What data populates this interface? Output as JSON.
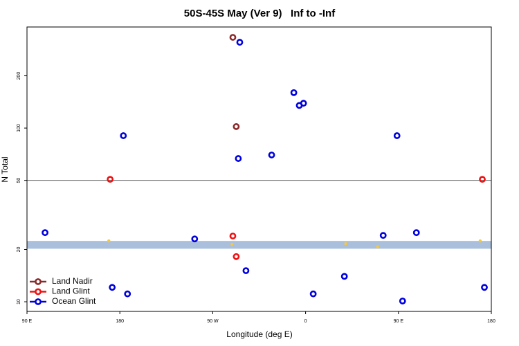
{
  "chart_data": {
    "type": "scatter",
    "title": "50S-45S May (Ver 9)   Inf to -Inf",
    "x_label": "Longitude (deg E)",
    "y_label": "N Total",
    "xlim": [
      90,
      540
    ],
    "xticks": [
      {
        "value": 90,
        "label": "90 E"
      },
      180,
      {
        "value": 270,
        "label": "90 W"
      },
      {
        "value": 360,
        "label": "0"
      },
      {
        "value": 450,
        "label": "90 E"
      },
      {
        "value": 540,
        "label": "180"
      }
    ],
    "ylim": [
      8.8,
      382
    ],
    "y_log": true,
    "yticks": [
      10,
      20,
      50,
      100,
      200
    ],
    "hline": 50,
    "hline_color": "#666666",
    "band": [
      20.2,
      22.4
    ],
    "band_color": "#a9bfdc",
    "legend": "bottom-left",
    "series": [
      {
        "name": "Land Nadir",
        "color": "#8b2a2a",
        "x": [
          289.5,
          292.8
        ],
        "values": [
          333,
          102
        ]
      },
      {
        "name": "Land Glint",
        "color": "#ee1111",
        "x": [
          170.6,
          531.3,
          289.5,
          292.8
        ],
        "values": [
          50.7,
          50.7,
          23.9,
          18.2
        ]
      },
      {
        "name": "Ocean Glint",
        "color": "#0000dd",
        "x": [
          296.2,
          107.5,
          183.4,
          172.6,
          187.4,
          252.5,
          294.8,
          327.1,
          348.6,
          353.9,
          358.0,
          302.2,
          367.4,
          397.6,
          435.2,
          448.6,
          467.4,
          454.0,
          533.3
        ],
        "values": [
          312,
          25.0,
          90.4,
          12.1,
          11.1,
          23.0,
          66.8,
          70.0,
          160,
          135,
          139,
          15.1,
          11.1,
          14.0,
          24.1,
          90.4,
          25.0,
          10.1,
          12.1
        ]
      },
      {
        "color": "#f5c842",
        "x": [
          169.3,
          288.8,
          398.9,
          429.8,
          529.2
        ],
        "values": [
          22.4,
          21.4,
          21.6,
          20.7,
          22.4
        ]
      }
    ]
  }
}
